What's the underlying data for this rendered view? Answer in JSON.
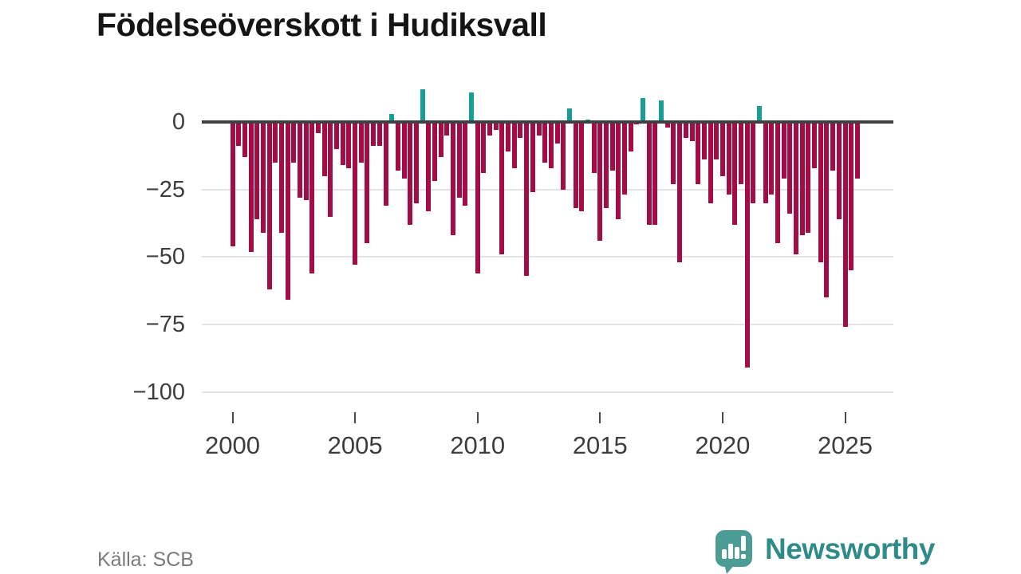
{
  "title": "Födelseöverskott i Hudiksvall",
  "source": "Källa: SCB",
  "branding": {
    "logo_text": "Newsworthy",
    "logo_icon": "newsworthy-speech-bubble-barchart-icon",
    "logo_text_color": "#2e8b88",
    "logo_icon_color": "#4a9c95"
  },
  "colors": {
    "negative_bar": "#a40c46",
    "positive_bar": "#169e97",
    "axis_line": "#3f3f44",
    "gridline": "#e3e3e3",
    "tick_label": "#3d3d3d",
    "source_text": "#7a7a7a"
  },
  "chart_data": {
    "type": "bar",
    "title": "Födelseöverskott i Hudiksvall",
    "frequency": "quarterly",
    "period_start": "2000 Q1",
    "period_end": "2025 Q3",
    "grid": "horizontal",
    "ylim": [
      -100,
      15
    ],
    "y_ticks": [
      {
        "label": "0",
        "value": 0
      },
      {
        "label": "−25",
        "value": -25
      },
      {
        "label": "−50",
        "value": -50
      },
      {
        "label": "−75",
        "value": -75
      },
      {
        "label": "−100",
        "value": -100
      }
    ],
    "x_ticks": [
      {
        "label": "2000",
        "quarter_index": 0
      },
      {
        "label": "2005",
        "quarter_index": 20
      },
      {
        "label": "2010",
        "quarter_index": 40
      },
      {
        "label": "2015",
        "quarter_index": 60
      },
      {
        "label": "2020",
        "quarter_index": 80
      },
      {
        "label": "2025",
        "quarter_index": 100
      }
    ],
    "series": [
      {
        "name": "Födelseöverskott",
        "values": [
          -46,
          -9,
          -13,
          -48,
          -36,
          -41,
          -62,
          -15,
          -41,
          -66,
          -15,
          -28,
          -29,
          -56,
          -4,
          -20,
          -35,
          -10,
          -16,
          -17,
          -53,
          -15,
          -45,
          -9,
          -9,
          -31,
          3,
          -18,
          -21,
          -38,
          -30,
          12,
          -33,
          -22,
          -13,
          -5,
          -42,
          -28,
          -31,
          11,
          -56,
          -19,
          -5,
          -3,
          -49,
          -11,
          -17,
          -6,
          -57,
          -26,
          -5,
          -15,
          -17,
          -8,
          -25,
          5,
          -32,
          -33,
          1,
          -19,
          -44,
          -32,
          -18,
          -36,
          -27,
          -11,
          -1,
          9,
          -38,
          -38,
          8,
          -2,
          -23,
          -52,
          -6,
          -7,
          -23,
          -14,
          -30,
          -14,
          -20,
          -27,
          -38,
          -23,
          -91,
          -30,
          6,
          -30,
          -27,
          -45,
          -21,
          -34,
          -49,
          -42,
          -41,
          -17,
          -52,
          -65,
          -18,
          -36,
          -76,
          -55,
          -21
        ]
      }
    ]
  }
}
